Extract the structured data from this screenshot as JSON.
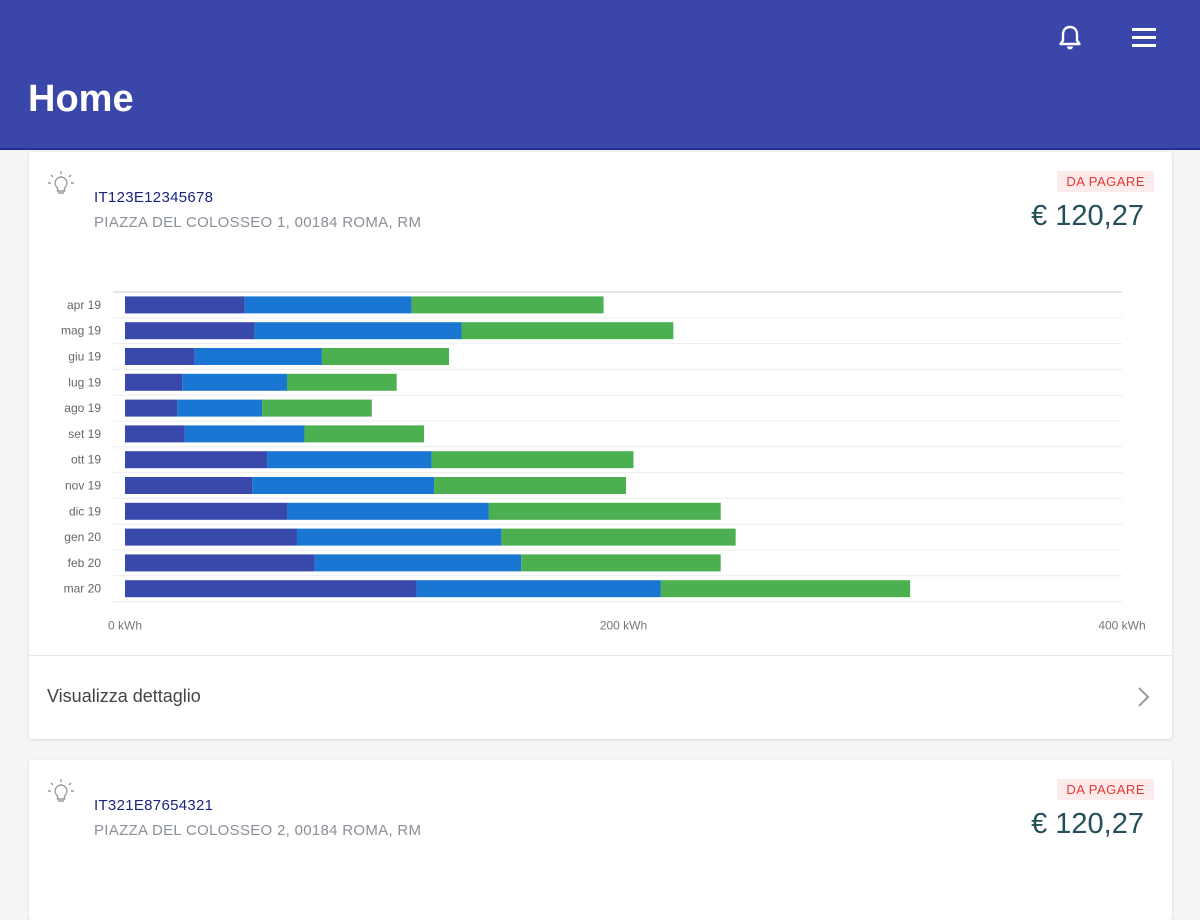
{
  "header": {
    "title": "Home",
    "icons": [
      "bell-icon",
      "menu-icon"
    ],
    "color": "#3a47a8"
  },
  "cards": [
    {
      "pod": "IT123E12345678",
      "address": "PIAZZA DEL COLOSSEO 1, 00184 ROMA, RM",
      "status": "DA PAGARE",
      "amount": "€ 120,27",
      "detail_label": "Visualizza dettaglio"
    },
    {
      "pod": "IT321E87654321",
      "address": "PIAZZA DEL COLOSSEO 2, 00184 ROMA, RM",
      "status": "DA PAGARE",
      "amount": "€ 120,27"
    }
  ],
  "chart_data": {
    "type": "bar",
    "orientation": "horizontal",
    "stacked": true,
    "categories": [
      "apr 19",
      "mag 19",
      "giu 19",
      "lug 19",
      "ago 19",
      "set 19",
      "ott 19",
      "nov 19",
      "dic 19",
      "gen 20",
      "feb 20",
      "mar 20"
    ],
    "series": [
      {
        "values": [
          48,
          52,
          28,
          23,
          21,
          24,
          57,
          51,
          65,
          69,
          76,
          117
        ],
        "color": "#3949ab"
      },
      {
        "values": [
          67,
          83,
          51,
          42,
          34,
          48,
          66,
          73,
          81,
          82,
          83,
          98
        ],
        "color": "#1976d2"
      },
      {
        "values": [
          77,
          85,
          51,
          44,
          44,
          48,
          81,
          77,
          93,
          94,
          80,
          100
        ],
        "color": "#4caf50"
      }
    ],
    "xlim": [
      0,
      400
    ],
    "xticks": [
      "0 kWh",
      "200 kWh",
      "400 kWh"
    ],
    "grid": true,
    "legend": "none"
  }
}
